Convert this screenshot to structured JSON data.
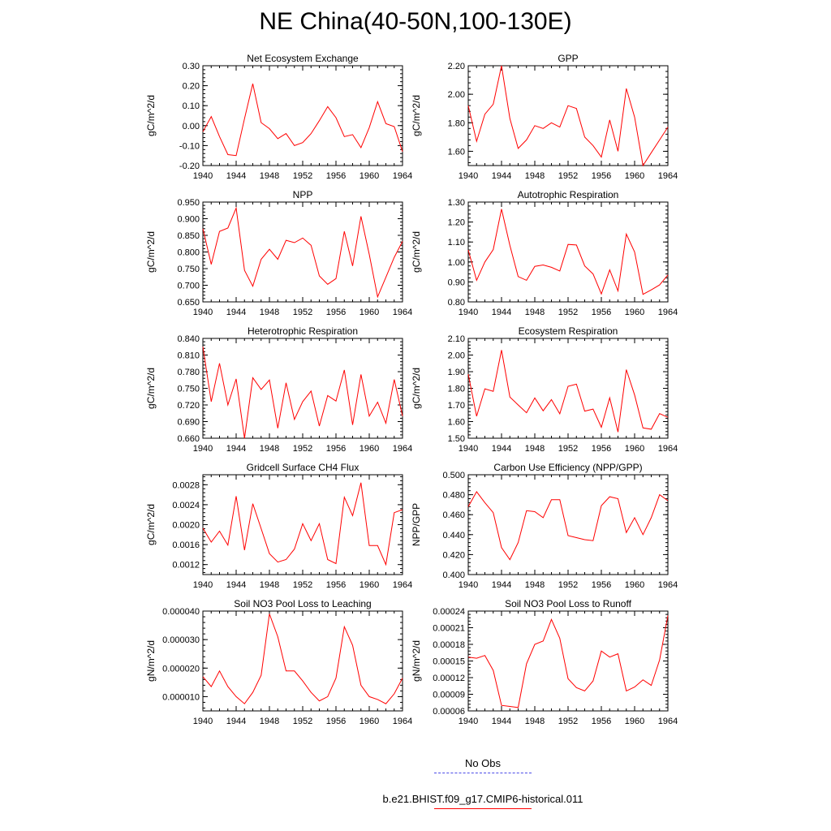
{
  "title": "NE China(40-50N,100-130E)",
  "legend": {
    "entries": [
      {
        "label": "No Obs",
        "color": "#4a4ae8",
        "style": "dashed"
      },
      {
        "label": "b.e21.BHIST.f09_g17.CMIP6-historical.011",
        "color": "#ff0000",
        "style": "solid"
      }
    ]
  },
  "chart_data": [
    {
      "type": "line",
      "title": "Net Ecosystem Exchange",
      "ylabel": "gC/m^2/d",
      "xlim": [
        1940,
        1964
      ],
      "ylim": [
        -0.2,
        0.3
      ],
      "xticks": [
        "1940",
        "1944",
        "1948",
        "1952",
        "1956",
        "1960",
        "1964"
      ],
      "yticks": [
        "-0.20",
        "-0.10",
        "0.00",
        "0.10",
        "0.20",
        "0.30"
      ],
      "ytick_values": [
        -0.2,
        -0.1,
        0.0,
        0.1,
        0.2,
        0.3
      ],
      "x": [
        1940,
        1941,
        1942,
        1943,
        1944,
        1945,
        1946,
        1947,
        1948,
        1949,
        1950,
        1951,
        1952,
        1953,
        1954,
        1955,
        1956,
        1957,
        1958,
        1959,
        1960,
        1961,
        1962,
        1963,
        1964
      ],
      "series": [
        {
          "color": "#ff0000",
          "values": [
            -0.03,
            0.045,
            -0.055,
            -0.145,
            -0.15,
            0.035,
            0.21,
            0.015,
            -0.015,
            -0.065,
            -0.04,
            -0.1,
            -0.085,
            -0.04,
            0.025,
            0.095,
            0.04,
            -0.055,
            -0.045,
            -0.11,
            -0.01,
            0.12,
            0.01,
            -0.005,
            -0.13
          ]
        }
      ]
    },
    {
      "type": "line",
      "title": "GPP",
      "ylabel": "gC/m^2/d",
      "xlim": [
        1940,
        1964
      ],
      "ylim": [
        1.5,
        2.2
      ],
      "xticks": [
        "1940",
        "1944",
        "1948",
        "1952",
        "1956",
        "1960",
        "1964"
      ],
      "yticks": [
        "1.60",
        "1.80",
        "2.00",
        "2.20"
      ],
      "ytick_values": [
        1.6,
        1.8,
        2.0,
        2.2
      ],
      "x": [
        1940,
        1941,
        1942,
        1943,
        1944,
        1945,
        1946,
        1947,
        1948,
        1949,
        1950,
        1951,
        1952,
        1953,
        1954,
        1955,
        1956,
        1957,
        1958,
        1959,
        1960,
        1961,
        1962,
        1963,
        1964
      ],
      "series": [
        {
          "color": "#ff0000",
          "values": [
            1.92,
            1.67,
            1.86,
            1.93,
            2.2,
            1.83,
            1.62,
            1.68,
            1.78,
            1.76,
            1.8,
            1.77,
            1.92,
            1.9,
            1.7,
            1.64,
            1.56,
            1.82,
            1.6,
            2.04,
            1.84,
            1.5,
            1.59,
            1.68,
            1.77
          ]
        }
      ]
    },
    {
      "type": "line",
      "title": "NPP",
      "ylabel": "gC/m^2/d",
      "xlim": [
        1940,
        1964
      ],
      "ylim": [
        0.65,
        0.95
      ],
      "xticks": [
        "1940",
        "1944",
        "1948",
        "1952",
        "1956",
        "1960",
        "1964"
      ],
      "yticks": [
        "0.650",
        "0.700",
        "0.750",
        "0.800",
        "0.850",
        "0.900",
        "0.950"
      ],
      "ytick_values": [
        0.65,
        0.7,
        0.75,
        0.8,
        0.85,
        0.9,
        0.95
      ],
      "x": [
        1940,
        1941,
        1942,
        1943,
        1944,
        1945,
        1946,
        1947,
        1948,
        1949,
        1950,
        1951,
        1952,
        1953,
        1954,
        1955,
        1956,
        1957,
        1958,
        1959,
        1960,
        1961,
        1962,
        1963,
        1964
      ],
      "series": [
        {
          "color": "#ff0000",
          "values": [
            0.87,
            0.763,
            0.862,
            0.872,
            0.932,
            0.745,
            0.697,
            0.778,
            0.808,
            0.778,
            0.835,
            0.828,
            0.842,
            0.82,
            0.728,
            0.703,
            0.72,
            0.862,
            0.758,
            0.907,
            0.793,
            0.665,
            0.724,
            0.784,
            0.832
          ]
        }
      ]
    },
    {
      "type": "line",
      "title": "Autotrophic Respiration",
      "ylabel": "gC/m^2/d",
      "xlim": [
        1940,
        1964
      ],
      "ylim": [
        0.8,
        1.3
      ],
      "xticks": [
        "1940",
        "1944",
        "1948",
        "1952",
        "1956",
        "1960",
        "1964"
      ],
      "yticks": [
        "0.80",
        "0.90",
        "1.00",
        "1.10",
        "1.20",
        "1.30"
      ],
      "ytick_values": [
        0.8,
        0.9,
        1.0,
        1.1,
        1.2,
        1.3
      ],
      "x": [
        1940,
        1941,
        1942,
        1943,
        1944,
        1945,
        1946,
        1947,
        1948,
        1949,
        1950,
        1951,
        1952,
        1953,
        1954,
        1955,
        1956,
        1957,
        1958,
        1959,
        1960,
        1961,
        1962,
        1963,
        1964
      ],
      "series": [
        {
          "color": "#ff0000",
          "values": [
            1.06,
            0.908,
            1.0,
            1.062,
            1.265,
            1.083,
            0.927,
            0.908,
            0.978,
            0.985,
            0.973,
            0.955,
            1.088,
            1.085,
            0.98,
            0.94,
            0.84,
            0.96,
            0.855,
            1.14,
            1.05,
            0.838,
            0.86,
            0.885,
            0.935
          ]
        }
      ]
    },
    {
      "type": "line",
      "title": "Heterotrophic Respiration",
      "ylabel": "gC/m^2/d",
      "xlim": [
        1940,
        1964
      ],
      "ylim": [
        0.66,
        0.84
      ],
      "xticks": [
        "1940",
        "1944",
        "1948",
        "1952",
        "1956",
        "1960",
        "1964"
      ],
      "yticks": [
        "0.660",
        "0.690",
        "0.720",
        "0.750",
        "0.780",
        "0.810",
        "0.840"
      ],
      "ytick_values": [
        0.66,
        0.69,
        0.72,
        0.75,
        0.78,
        0.81,
        0.84
      ],
      "x": [
        1940,
        1941,
        1942,
        1943,
        1944,
        1945,
        1946,
        1947,
        1948,
        1949,
        1950,
        1951,
        1952,
        1953,
        1954,
        1955,
        1956,
        1957,
        1958,
        1959,
        1960,
        1961,
        1962,
        1963,
        1964
      ],
      "series": [
        {
          "color": "#ff0000",
          "values": [
            0.825,
            0.726,
            0.795,
            0.72,
            0.767,
            0.66,
            0.769,
            0.748,
            0.765,
            0.678,
            0.76,
            0.694,
            0.726,
            0.745,
            0.682,
            0.737,
            0.727,
            0.783,
            0.684,
            0.775,
            0.7,
            0.725,
            0.687,
            0.766,
            0.7
          ]
        }
      ]
    },
    {
      "type": "line",
      "title": "Ecosystem Respiration",
      "ylabel": "gC/m^2/d",
      "xlim": [
        1940,
        1964
      ],
      "ylim": [
        1.5,
        2.1
      ],
      "xticks": [
        "1940",
        "1944",
        "1948",
        "1952",
        "1956",
        "1960",
        "1964"
      ],
      "yticks": [
        "1.50",
        "1.60",
        "1.70",
        "1.80",
        "1.90",
        "2.00",
        "2.10"
      ],
      "ytick_values": [
        1.5,
        1.6,
        1.7,
        1.8,
        1.9,
        2.0,
        2.1
      ],
      "x": [
        1940,
        1941,
        1942,
        1943,
        1944,
        1945,
        1946,
        1947,
        1948,
        1949,
        1950,
        1951,
        1952,
        1953,
        1954,
        1955,
        1956,
        1957,
        1958,
        1959,
        1960,
        1961,
        1962,
        1963,
        1964
      ],
      "series": [
        {
          "color": "#ff0000",
          "values": [
            1.885,
            1.632,
            1.797,
            1.782,
            2.03,
            1.748,
            1.7,
            1.653,
            1.742,
            1.665,
            1.732,
            1.647,
            1.812,
            1.825,
            1.663,
            1.675,
            1.566,
            1.743,
            1.537,
            1.912,
            1.76,
            1.562,
            1.554,
            1.648,
            1.626
          ]
        }
      ]
    },
    {
      "type": "line",
      "title": "Gridcell Surface CH4 Flux",
      "ylabel": "gC/m^2/d",
      "xlim": [
        1940,
        1964
      ],
      "ylim": [
        0.001,
        0.003
      ],
      "xticks": [
        "1940",
        "1944",
        "1948",
        "1952",
        "1956",
        "1960",
        "1964"
      ],
      "yticks": [
        "0.0012",
        "0.0016",
        "0.0020",
        "0.0024",
        "0.0028"
      ],
      "ytick_values": [
        0.0012,
        0.0016,
        0.002,
        0.0024,
        0.0028
      ],
      "x": [
        1940,
        1941,
        1942,
        1943,
        1944,
        1945,
        1946,
        1947,
        1948,
        1949,
        1950,
        1951,
        1952,
        1953,
        1954,
        1955,
        1956,
        1957,
        1958,
        1959,
        1960,
        1961,
        1962,
        1963,
        1964
      ],
      "series": [
        {
          "color": "#ff0000",
          "values": [
            0.00193,
            0.00165,
            0.00187,
            0.00159,
            0.00257,
            0.00149,
            0.00242,
            0.00192,
            0.00142,
            0.00125,
            0.0013,
            0.00151,
            0.00202,
            0.00168,
            0.00202,
            0.0013,
            0.00122,
            0.00255,
            0.00218,
            0.00284,
            0.00158,
            0.00158,
            0.0012,
            0.00224,
            0.0023
          ]
        }
      ]
    },
    {
      "type": "line",
      "title": "Carbon Use Efficiency (NPP/GPP)",
      "ylabel": "NPP/GPP",
      "xlim": [
        1940,
        1964
      ],
      "ylim": [
        0.4,
        0.5
      ],
      "xticks": [
        "1940",
        "1944",
        "1948",
        "1952",
        "1956",
        "1960",
        "1964"
      ],
      "yticks": [
        "0.400",
        "0.420",
        "0.440",
        "0.460",
        "0.480",
        "0.500"
      ],
      "ytick_values": [
        0.4,
        0.42,
        0.44,
        0.46,
        0.48,
        0.5
      ],
      "x": [
        1940,
        1941,
        1942,
        1943,
        1944,
        1945,
        1946,
        1947,
        1948,
        1949,
        1950,
        1951,
        1952,
        1953,
        1954,
        1955,
        1956,
        1957,
        1958,
        1959,
        1960,
        1961,
        1962,
        1963,
        1964
      ],
      "series": [
        {
          "color": "#ff0000",
          "values": [
            0.468,
            0.483,
            0.472,
            0.462,
            0.427,
            0.415,
            0.432,
            0.464,
            0.463,
            0.457,
            0.475,
            0.475,
            0.439,
            0.437,
            0.435,
            0.434,
            0.469,
            0.478,
            0.476,
            0.442,
            0.457,
            0.44,
            0.457,
            0.48,
            0.474
          ]
        }
      ]
    },
    {
      "type": "line",
      "title": "Soil NO3 Pool Loss to Leaching",
      "ylabel": "gN/m^2/d",
      "xlim": [
        1940,
        1964
      ],
      "ylim": [
        5e-06,
        4e-05
      ],
      "xticks": [
        "1940",
        "1944",
        "1948",
        "1952",
        "1956",
        "1960",
        "1964"
      ],
      "yticks": [
        "0.000010",
        "0.000020",
        "0.000030",
        "0.000040"
      ],
      "ytick_values": [
        1e-05,
        2e-05,
        3e-05,
        4e-05
      ],
      "x": [
        1940,
        1941,
        1942,
        1943,
        1944,
        1945,
        1946,
        1947,
        1948,
        1949,
        1950,
        1951,
        1952,
        1953,
        1954,
        1955,
        1956,
        1957,
        1958,
        1959,
        1960,
        1961,
        1962,
        1963,
        1964
      ],
      "series": [
        {
          "color": "#ff0000",
          "values": [
            1.7e-05,
            1.35e-05,
            1.9e-05,
            1.35e-05,
            1e-05,
            7.5e-06,
            1.15e-05,
            1.75e-05,
            3.9e-05,
            3.1e-05,
            1.9e-05,
            1.9e-05,
            1.55e-05,
            1.15e-05,
            8.5e-06,
            1e-05,
            1.65e-05,
            3.45e-05,
            2.8e-05,
            1.4e-05,
            1e-05,
            9e-06,
            7.5e-06,
            1.1e-05,
            1.65e-05
          ]
        }
      ]
    },
    {
      "type": "line",
      "title": "Soil NO3 Pool Loss to Runoff",
      "ylabel": "gN/m^2/d",
      "xlim": [
        1940,
        1964
      ],
      "ylim": [
        6e-05,
        0.00024
      ],
      "xticks": [
        "1940",
        "1944",
        "1948",
        "1952",
        "1956",
        "1960",
        "1964"
      ],
      "yticks": [
        "0.00006",
        "0.00009",
        "0.00012",
        "0.00015",
        "0.00018",
        "0.00021",
        "0.00024"
      ],
      "ytick_values": [
        6e-05,
        9e-05,
        0.00012,
        0.00015,
        0.00018,
        0.00021,
        0.00024
      ],
      "x": [
        1940,
        1941,
        1942,
        1943,
        1944,
        1945,
        1946,
        1947,
        1948,
        1949,
        1950,
        1951,
        1952,
        1953,
        1954,
        1955,
        1956,
        1957,
        1958,
        1959,
        1960,
        1961,
        1962,
        1963,
        1964
      ],
      "series": [
        {
          "color": "#ff0000",
          "values": [
            0.000157,
            0.000155,
            0.00016,
            0.000133,
            7e-05,
            6.8e-05,
            6.6e-05,
            0.000145,
            0.00018,
            0.000186,
            0.000225,
            0.000191,
            0.000118,
            0.000102,
            9.6e-05,
            0.000114,
            0.000168,
            0.000157,
            0.000163,
            9.6e-05,
            0.000103,
            0.000116,
            0.000106,
            0.000152,
            0.000232
          ]
        }
      ]
    }
  ]
}
